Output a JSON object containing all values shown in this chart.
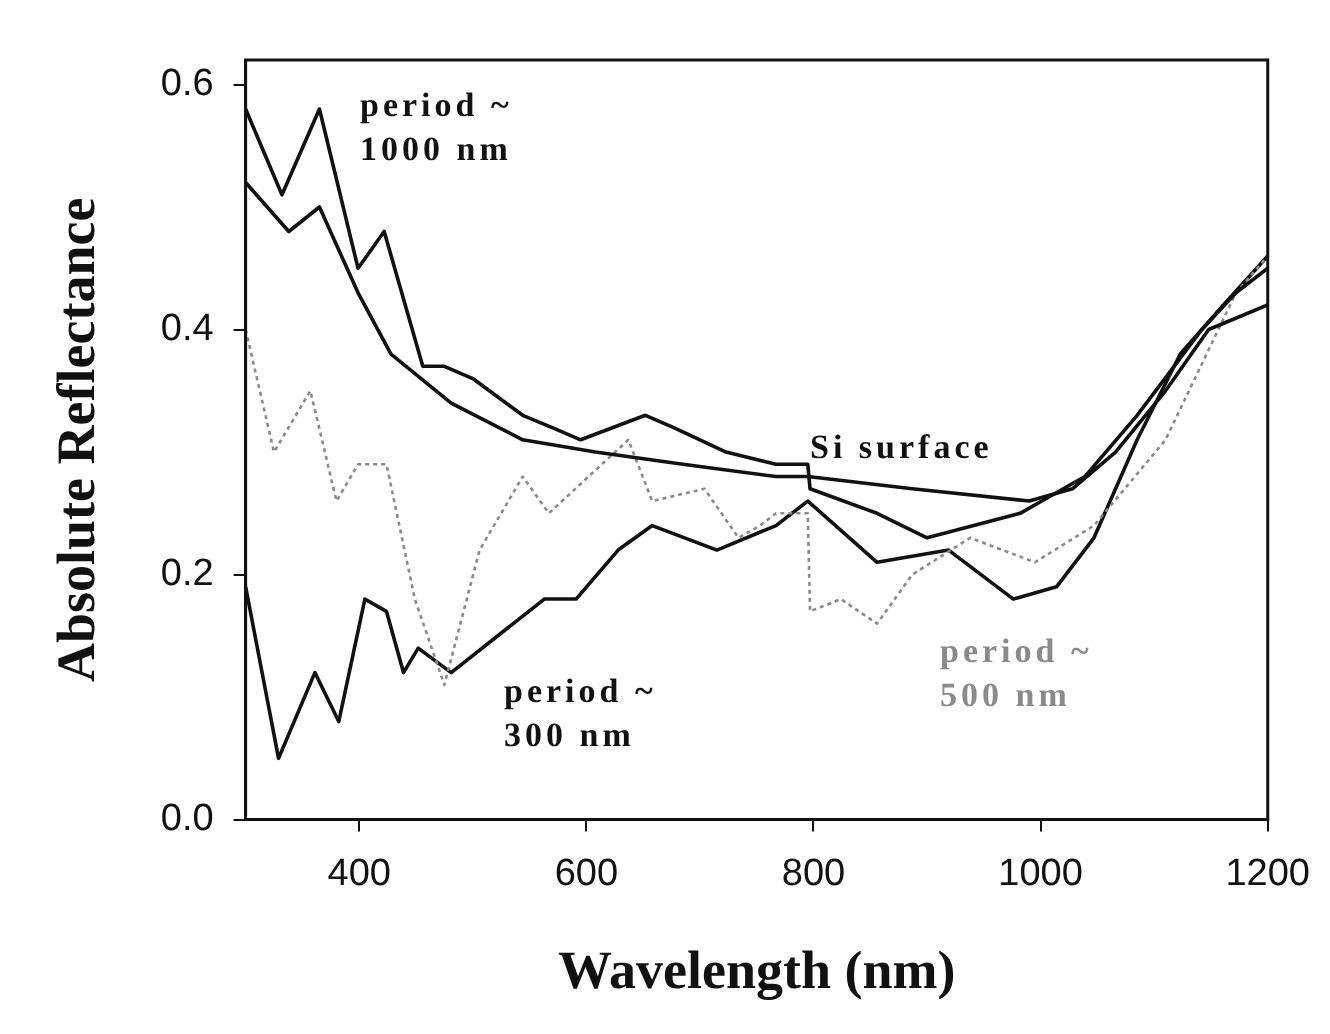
{
  "chart_data": {
    "type": "line",
    "xlabel": "Wavelength (nm)",
    "ylabel": "Absolute Reflectance",
    "xlim": [
      300,
      1200
    ],
    "xticks": [
      400,
      600,
      800,
      1000,
      1200
    ],
    "ylim": [
      0,
      0.62
    ],
    "yticks": [
      {
        "value": 0,
        "label": "0.0"
      },
      {
        "value": 0.2,
        "label": "0.2"
      },
      {
        "value": 0.4,
        "label": "0.4"
      },
      {
        "value": 0.6,
        "label": "0.6"
      }
    ],
    "grid": false,
    "legend": false,
    "marker": "none",
    "line_style": "solid",
    "series": [
      {
        "name": "period ~ 1000 nm",
        "color": "#111111",
        "x": [
          300,
          332,
          365,
          399,
          422,
          456,
          475,
          500,
          544,
          570,
          595,
          652,
          677,
          723,
          767,
          795,
          797,
          856,
          900,
          982,
          1039,
          1085,
          1142,
          1172,
          1200
        ],
        "values": [
          0.58,
          0.51,
          0.58,
          0.45,
          0.48,
          0.37,
          0.37,
          0.36,
          0.33,
          0.32,
          0.31,
          0.33,
          0.32,
          0.3,
          0.29,
          0.29,
          0.27,
          0.25,
          0.23,
          0.25,
          0.28,
          0.33,
          0.4,
          0.43,
          0.45
        ]
      },
      {
        "name": "Si surface",
        "color": "#111111",
        "x": [
          300,
          338,
          365,
          399,
          428,
          481,
          544,
          608,
          685,
          767,
          795,
          887,
          990,
          1028,
          1066,
          1110,
          1148,
          1200
        ],
        "values": [
          0.52,
          0.48,
          0.5,
          0.43,
          0.38,
          0.34,
          0.31,
          0.3,
          0.29,
          0.28,
          0.28,
          0.27,
          0.26,
          0.27,
          0.3,
          0.35,
          0.4,
          0.42
        ]
      },
      {
        "name": "period ~ 500 nm",
        "color": "#8a8a8a",
        "line_style": "dotted",
        "x": [
          300,
          325,
          357,
          380,
          399,
          424,
          449,
          475,
          506,
          544,
          567,
          637,
          658,
          704,
          734,
          753,
          767,
          795,
          797,
          824,
          856,
          887,
          938,
          995,
          1047,
          1110,
          1172,
          1200
        ],
        "values": [
          0.4,
          0.3,
          0.35,
          0.26,
          0.29,
          0.29,
          0.18,
          0.11,
          0.22,
          0.28,
          0.25,
          0.31,
          0.26,
          0.27,
          0.23,
          0.24,
          0.25,
          0.25,
          0.17,
          0.18,
          0.16,
          0.2,
          0.23,
          0.21,
          0.24,
          0.31,
          0.43,
          0.46
        ]
      },
      {
        "name": "period ~ 300 nm",
        "color": "#111111",
        "x": [
          300,
          329,
          361,
          382,
          405,
          424,
          439,
          452,
          481,
          563,
          591,
          628,
          658,
          715,
          767,
          795,
          856,
          919,
          976,
          1014,
          1047,
          1085,
          1123,
          1161,
          1200
        ],
        "values": [
          0.19,
          0.05,
          0.12,
          0.08,
          0.18,
          0.17,
          0.12,
          0.14,
          0.12,
          0.18,
          0.18,
          0.22,
          0.24,
          0.22,
          0.24,
          0.26,
          0.21,
          0.22,
          0.18,
          0.19,
          0.23,
          0.31,
          0.38,
          0.42,
          0.46
        ]
      }
    ]
  }
}
